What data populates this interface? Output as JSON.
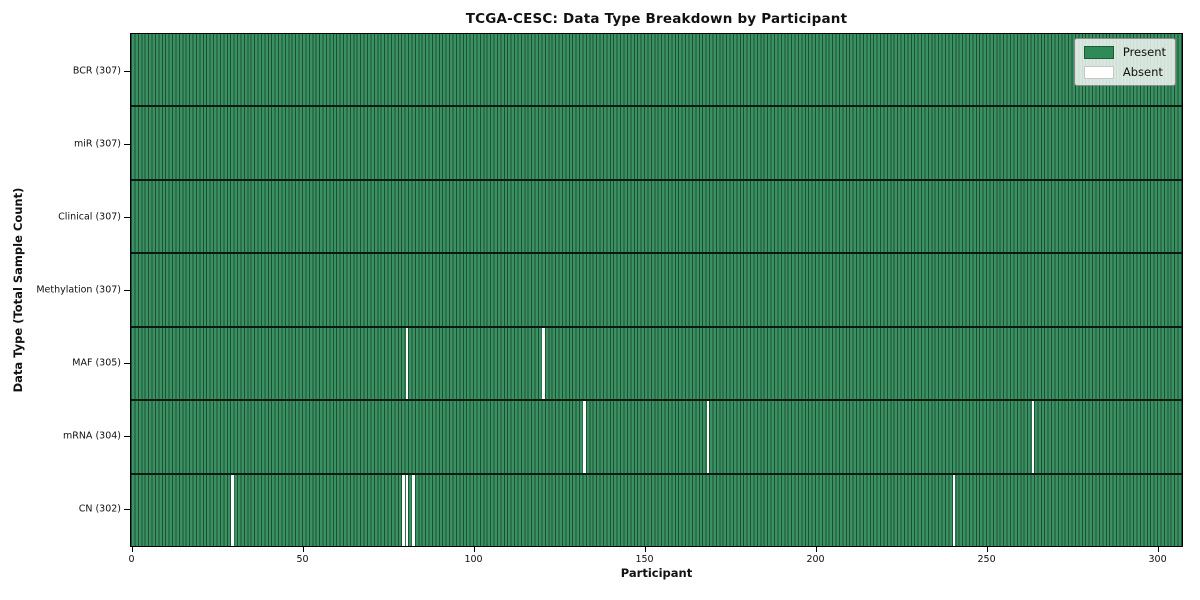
{
  "title": "TCGA-CESC: Data Type Breakdown by Participant",
  "xlabel": "Participant",
  "ylabel": "Data Type (Total Sample Count)",
  "legend": {
    "present_label": "Present",
    "absent_label": "Absent"
  },
  "colors": {
    "present": "#2e8b57",
    "present_edge": "#1d4f35",
    "absent": "#ffffff",
    "row_separator": "#0c1a11",
    "plot_border": "#000000"
  },
  "chart_data": {
    "type": "heatmap",
    "title": "TCGA-CESC: Data Type Breakdown by Participant",
    "xlabel": "Participant",
    "ylabel": "Data Type (Total Sample Count)",
    "x_ticks": [
      0,
      50,
      100,
      150,
      200,
      250,
      300
    ],
    "x_range": [
      0,
      307
    ],
    "n_participants": 307,
    "grid": false,
    "legend_position": "upper right",
    "legend_entries": [
      "Present",
      "Absent"
    ],
    "rows": [
      {
        "label": "BCR (307)",
        "data_type": "BCR",
        "total": 307,
        "absent_participants": []
      },
      {
        "label": "miR (307)",
        "data_type": "miR",
        "total": 307,
        "absent_participants": []
      },
      {
        "label": "Clinical (307)",
        "data_type": "Clinical",
        "total": 307,
        "absent_participants": []
      },
      {
        "label": "Methylation (307)",
        "data_type": "Methylation",
        "total": 307,
        "absent_participants": []
      },
      {
        "label": "MAF (305)",
        "data_type": "MAF",
        "total": 305,
        "absent_participants": [
          80,
          120
        ]
      },
      {
        "label": "mRNA (304)",
        "data_type": "mRNA",
        "total": 304,
        "absent_participants": [
          132,
          168,
          263
        ]
      },
      {
        "label": "CN (302)",
        "data_type": "CN",
        "total": 302,
        "absent_participants": [
          29,
          79,
          80,
          82,
          240
        ]
      }
    ]
  }
}
